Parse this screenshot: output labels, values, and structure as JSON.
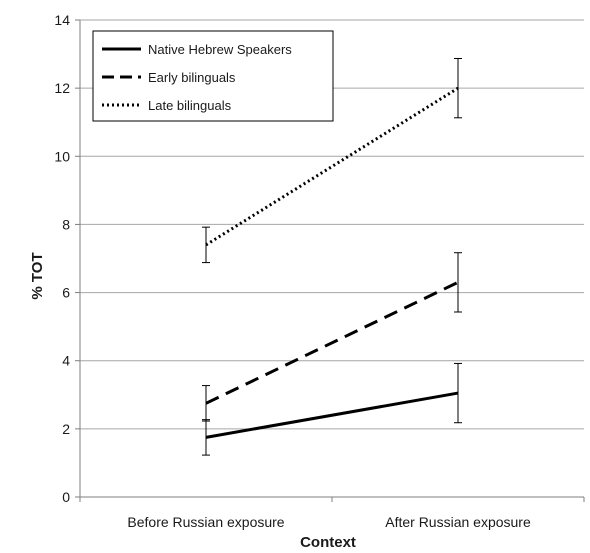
{
  "chart_data": {
    "type": "line",
    "title": "",
    "xlabel": "Context",
    "ylabel": "% TOT",
    "categories": [
      "Before Russian exposure",
      "After Russian exposure"
    ],
    "ylim": [
      0,
      14
    ],
    "yticks": [
      0,
      2,
      4,
      6,
      8,
      10,
      12,
      14
    ],
    "grid": true,
    "legend_position": "top-left",
    "series": [
      {
        "name": "Native Hebrew Speakers",
        "style": "solid",
        "values": [
          1.75,
          3.05
        ],
        "error": [
          0.52,
          0.87
        ]
      },
      {
        "name": "Early bilinguals",
        "style": "dashed",
        "values": [
          2.75,
          6.3
        ],
        "error": [
          0.52,
          0.87
        ]
      },
      {
        "name": "Late bilinguals",
        "style": "dotted",
        "values": [
          7.4,
          12.0
        ],
        "error": [
          0.52,
          0.87
        ]
      }
    ],
    "colors": {
      "line": "#000000",
      "grid": "#a6a6a6",
      "axis": "#7f7f7f"
    }
  }
}
